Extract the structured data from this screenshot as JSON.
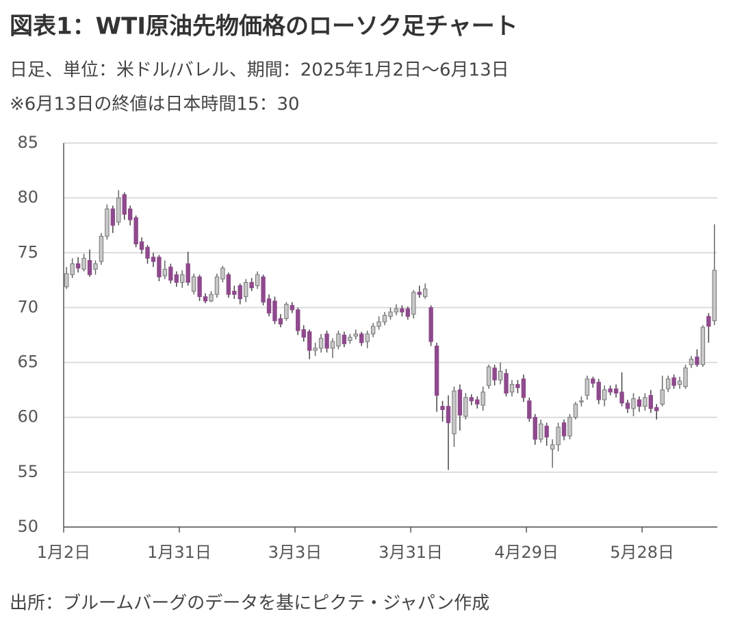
{
  "chart_data": {
    "type": "candlestick",
    "title": "図表1：WTI原油先物価格のローソク足チャート",
    "subtitle": "日足、単位：米ドル/バレル、期間：2025年1月2日～6月13日",
    "note": "※6月13日の終値は日本時間15：30",
    "source": "出所：ブルームバーグのデータを基にピクテ・ジャパン作成",
    "up_color": "#c8c8c8",
    "down_color": "#8e4a8c",
    "grid": true,
    "ylim": [
      50,
      85
    ],
    "yticks": [
      50,
      55,
      60,
      65,
      70,
      75,
      80,
      85
    ],
    "categories": [
      "1月2日",
      null,
      null,
      null,
      null,
      null,
      null,
      null,
      null,
      null,
      null,
      null,
      null,
      null,
      null,
      null,
      null,
      null,
      null,
      null,
      "1月31日",
      null,
      null,
      null,
      null,
      null,
      null,
      null,
      null,
      null,
      null,
      null,
      null,
      null,
      null,
      null,
      null,
      null,
      null,
      null,
      "3月3日",
      null,
      null,
      null,
      null,
      null,
      null,
      null,
      null,
      null,
      null,
      null,
      null,
      null,
      null,
      null,
      null,
      null,
      null,
      null,
      "3月31日",
      null,
      null,
      null,
      null,
      null,
      null,
      null,
      null,
      null,
      null,
      null,
      null,
      null,
      null,
      null,
      null,
      null,
      null,
      null,
      "4月29日",
      null,
      null,
      null,
      null,
      null,
      null,
      null,
      null,
      null,
      null,
      null,
      null,
      null,
      null,
      null,
      null,
      null,
      null,
      null,
      "5月28日",
      null,
      null,
      null,
      null,
      null,
      null,
      null,
      null,
      null,
      null,
      null,
      null
    ],
    "open": [
      71.9,
      73.0,
      74.0,
      73.5,
      74.3,
      73.5,
      74.2,
      76.5,
      79.0,
      77.8,
      80.3,
      79.0,
      78.2,
      76.0,
      75.5,
      74.6,
      74.6,
      72.9,
      73.7,
      73.0,
      72.3,
      74.0,
      71.5,
      72.8,
      71.0,
      70.6,
      71.2,
      72.6,
      73.0,
      71.5,
      72.0,
      71.0,
      72.3,
      72.0,
      72.8,
      70.8,
      70.6,
      69.0,
      69.0,
      70.2,
      69.8,
      68.0,
      67.8,
      66.1,
      66.3,
      67.6,
      66.3,
      66.5,
      67.5,
      67.0,
      67.4,
      67.6,
      66.9,
      67.6,
      68.3,
      68.7,
      69.2,
      69.6,
      69.9,
      69.9,
      69.4,
      71.4,
      71.0,
      70.0,
      66.5,
      61.0,
      61.0,
      58.5,
      62.5,
      60.1,
      61.8,
      61.6,
      61.1,
      62.9,
      64.5,
      63.4,
      64.0,
      62.3,
      63.0,
      63.5,
      61.5,
      60.0,
      58.0,
      59.2,
      57.1,
      57.5,
      59.5,
      58.3,
      60.0,
      61.4,
      62.0,
      63.5,
      63.2,
      61.6,
      62.6,
      62.6,
      62.3,
      61.3,
      60.8,
      61.6,
      61.0,
      62.0,
      60.9,
      61.2,
      62.6,
      63.6,
      63.0,
      62.8,
      64.8,
      65.5,
      64.8,
      69.2,
      68.8
    ],
    "high": [
      73.7,
      74.5,
      74.6,
      74.9,
      75.3,
      74.3,
      76.8,
      79.4,
      79.3,
      80.7,
      80.5,
      79.3,
      78.4,
      76.4,
      75.7,
      75.0,
      74.8,
      74.3,
      74.0,
      73.3,
      73.4,
      75.1,
      73.1,
      73.0,
      71.3,
      71.5,
      73.1,
      73.8,
      73.2,
      72.0,
      72.2,
      72.6,
      72.7,
      73.3,
      73.0,
      71.2,
      71.0,
      69.4,
      70.5,
      70.5,
      70.0,
      68.4,
      68.0,
      66.8,
      67.6,
      67.9,
      67.2,
      67.9,
      67.8,
      67.6,
      68.0,
      67.8,
      67.9,
      68.6,
      69.2,
      69.6,
      70.0,
      70.3,
      70.2,
      70.1,
      71.6,
      72.0,
      72.2,
      70.2,
      66.8,
      61.5,
      62.0,
      62.8,
      63.0,
      62.2,
      62.1,
      61.9,
      62.8,
      64.8,
      64.8,
      65.0,
      64.4,
      63.4,
      63.4,
      63.9,
      61.8,
      60.3,
      59.8,
      59.5,
      58.0,
      59.5,
      59.8,
      60.3,
      61.4,
      61.9,
      63.8,
      63.7,
      63.5,
      62.9,
      62.9,
      63.0,
      64.1,
      61.6,
      62.2,
      61.9,
      62.2,
      62.5,
      61.2,
      63.8,
      63.8,
      63.9,
      63.7,
      64.8,
      65.6,
      66.2,
      68.4,
      69.5,
      77.6
    ],
    "low": [
      71.7,
      72.7,
      73.2,
      73.3,
      72.8,
      73.0,
      73.9,
      76.2,
      76.8,
      77.5,
      78.0,
      77.5,
      75.5,
      74.9,
      74.0,
      73.7,
      72.4,
      72.6,
      72.2,
      71.9,
      71.8,
      72.0,
      71.2,
      70.6,
      70.4,
      70.5,
      70.9,
      72.3,
      70.9,
      70.8,
      70.3,
      70.5,
      71.5,
      71.7,
      70.2,
      69.2,
      68.5,
      68.2,
      68.8,
      69.5,
      67.5,
      66.9,
      65.3,
      65.6,
      65.9,
      65.9,
      65.4,
      66.2,
      66.4,
      66.7,
      67.1,
      66.5,
      66.3,
      67.3,
      68.0,
      68.4,
      68.9,
      69.3,
      69.2,
      68.9,
      69.0,
      70.9,
      70.8,
      66.5,
      60.5,
      59.6,
      55.2,
      57.3,
      58.8,
      59.8,
      61.1,
      60.8,
      60.6,
      62.6,
      62.9,
      63.0,
      61.9,
      61.9,
      62.2,
      61.4,
      59.6,
      57.5,
      57.7,
      57.4,
      55.4,
      56.9,
      57.9,
      58.0,
      59.8,
      61.0,
      61.6,
      62.7,
      61.2,
      61.0,
      62.0,
      61.8,
      61.0,
      60.4,
      60.1,
      60.5,
      60.6,
      60.4,
      59.8,
      61.0,
      62.3,
      62.6,
      62.6,
      62.6,
      64.5,
      64.6,
      64.6,
      66.8,
      68.4
    ],
    "close": [
      73.1,
      74.0,
      73.6,
      74.5,
      73.0,
      74.0,
      76.5,
      79.0,
      77.5,
      80.0,
      78.5,
      78.0,
      75.8,
      75.3,
      74.5,
      74.2,
      72.8,
      73.5,
      72.5,
      72.3,
      73.0,
      72.3,
      72.8,
      71.0,
      70.6,
      71.2,
      72.8,
      73.6,
      71.2,
      71.2,
      70.8,
      72.3,
      71.8,
      73.0,
      70.5,
      69.5,
      68.8,
      68.5,
      70.3,
      69.8,
      67.9,
      67.3,
      66.1,
      66.3,
      67.2,
      66.3,
      66.9,
      67.6,
      66.7,
      67.3,
      67.6,
      66.8,
      67.6,
      68.3,
      68.7,
      69.3,
      69.6,
      69.9,
      69.6,
      69.2,
      71.4,
      71.2,
      71.7,
      66.9,
      62.0,
      60.7,
      59.5,
      62.4,
      60.2,
      61.8,
      61.5,
      61.2,
      62.3,
      64.6,
      63.4,
      64.2,
      62.2,
      63.0,
      62.7,
      61.8,
      59.9,
      58.0,
      59.4,
      58.2,
      57.5,
      59.1,
      58.3,
      60.0,
      61.2,
      61.5,
      63.5,
      63.1,
      61.6,
      62.5,
      62.3,
      62.2,
      61.3,
      60.8,
      61.7,
      61.0,
      61.8,
      60.8,
      60.6,
      62.5,
      63.5,
      62.9,
      63.3,
      64.5,
      65.3,
      64.8,
      68.2,
      68.3,
      73.4
    ]
  }
}
